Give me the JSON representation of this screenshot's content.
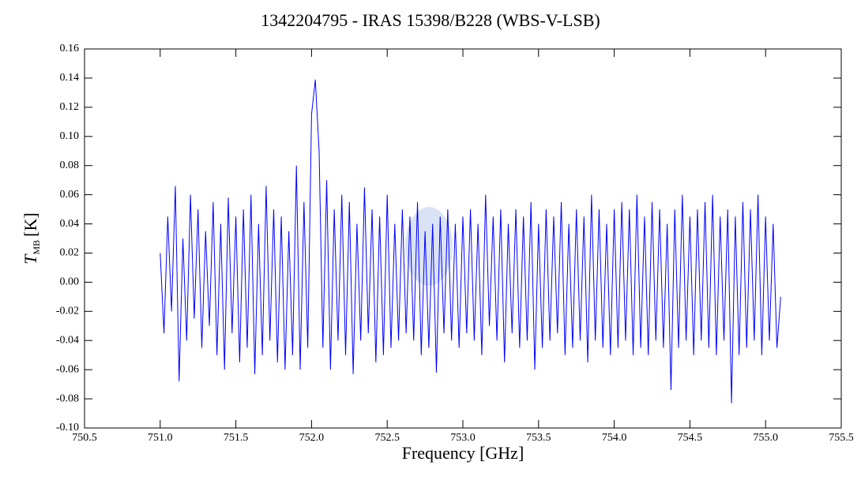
{
  "chart_data": {
    "type": "line",
    "title": "1342204795 - IRAS 15398/B228 (WBS-V-LSB)",
    "xlabel": "Frequency [GHz]",
    "ylabel": {
      "symbol": "T",
      "subscript": "MB",
      "unit": "[K]"
    },
    "xlim": [
      750.5,
      755.5
    ],
    "ylim": [
      -0.1,
      0.16
    ],
    "xticks": [
      750.5,
      {
        "value": 751,
        "label": "751.0"
      },
      751.5,
      {
        "value": 752,
        "label": "752.0"
      },
      752.5,
      {
        "value": 753,
        "label": "753.0"
      },
      753.5,
      {
        "value": 754,
        "label": "754.0"
      },
      754.5,
      {
        "value": 755,
        "label": "755.0"
      },
      755.5
    ],
    "yticks": [
      {
        "value": -0.1,
        "label": "-0.10"
      },
      -0.08,
      -0.06,
      -0.04,
      -0.02,
      {
        "value": 0,
        "label": "0.00"
      },
      0.02,
      0.04,
      0.06,
      0.08,
      {
        "value": 0.1,
        "label": "0.10"
      },
      0.12,
      0.14,
      0.16
    ],
    "x": [
      751,
      751.025,
      751.05,
      751.075,
      751.1,
      751.125,
      751.15,
      751.175,
      751.2,
      751.225,
      751.25,
      751.275,
      751.3,
      751.325,
      751.35,
      751.375,
      751.4,
      751.425,
      751.45,
      751.475,
      751.5,
      751.525,
      751.55,
      751.575,
      751.6,
      751.625,
      751.65,
      751.675,
      751.7,
      751.725,
      751.75,
      751.775,
      751.8,
      751.825,
      751.85,
      751.875,
      751.9,
      751.925,
      751.95,
      751.975,
      752,
      752.025,
      752.05,
      752.075,
      752.1,
      752.125,
      752.15,
      752.175,
      752.2,
      752.225,
      752.25,
      752.275,
      752.3,
      752.325,
      752.35,
      752.375,
      752.4,
      752.425,
      752.45,
      752.475,
      752.5,
      752.525,
      752.55,
      752.575,
      752.6,
      752.625,
      752.65,
      752.675,
      752.7,
      752.725,
      752.75,
      752.775,
      752.8,
      752.825,
      752.85,
      752.875,
      752.9,
      752.925,
      752.95,
      752.975,
      753,
      753.025,
      753.05,
      753.075,
      753.1,
      753.125,
      753.15,
      753.175,
      753.2,
      753.225,
      753.25,
      753.275,
      753.3,
      753.325,
      753.35,
      753.375,
      753.4,
      753.425,
      753.45,
      753.475,
      753.5,
      753.525,
      753.55,
      753.575,
      753.6,
      753.625,
      753.65,
      753.675,
      753.7,
      753.725,
      753.75,
      753.775,
      753.8,
      753.825,
      753.85,
      753.875,
      753.9,
      753.925,
      753.95,
      753.975,
      754,
      754.025,
      754.05,
      754.075,
      754.1,
      754.125,
      754.15,
      754.175,
      754.2,
      754.225,
      754.25,
      754.275,
      754.3,
      754.325,
      754.35,
      754.375,
      754.4,
      754.425,
      754.45,
      754.475,
      754.5,
      754.525,
      754.55,
      754.575,
      754.6,
      754.625,
      754.65,
      754.675,
      754.7,
      754.725,
      754.75,
      754.775,
      754.8,
      754.825,
      754.85,
      754.875,
      754.9,
      754.925,
      754.95,
      754.975,
      755,
      755.025,
      755.05,
      755.075,
      755.1
    ],
    "series": [
      {
        "color": "#0000ff",
        "values": [
          0.02,
          -0.035,
          0.045,
          -0.02,
          0.066,
          -0.068,
          0.03,
          -0.04,
          0.06,
          -0.025,
          0.05,
          -0.045,
          0.035,
          -0.03,
          0.055,
          -0.05,
          0.04,
          -0.06,
          0.058,
          -0.035,
          0.045,
          -0.055,
          0.05,
          -0.045,
          0.06,
          -0.063,
          0.04,
          -0.05,
          0.066,
          -0.04,
          0.05,
          -0.055,
          0.045,
          -0.06,
          0.035,
          -0.05,
          0.08,
          -0.06,
          0.055,
          -0.045,
          0.115,
          0.139,
          0.09,
          -0.045,
          0.07,
          -0.06,
          0.05,
          -0.04,
          0.06,
          -0.05,
          0.055,
          -0.063,
          0.04,
          -0.04,
          0.065,
          -0.035,
          0.05,
          -0.055,
          0.045,
          -0.05,
          0.06,
          -0.045,
          0.04,
          -0.04,
          0.05,
          -0.035,
          0.045,
          -0.04,
          0.055,
          -0.05,
          0.035,
          -0.045,
          0.04,
          -0.062,
          0.045,
          -0.035,
          0.05,
          -0.04,
          0.04,
          -0.045,
          0.045,
          -0.035,
          0.05,
          -0.04,
          0.04,
          -0.05,
          0.06,
          -0.03,
          0.045,
          -0.04,
          0.05,
          -0.055,
          0.04,
          -0.035,
          0.05,
          -0.045,
          0.045,
          -0.04,
          0.055,
          -0.06,
          0.04,
          -0.045,
          0.05,
          -0.04,
          0.045,
          -0.035,
          0.055,
          -0.05,
          0.04,
          -0.045,
          0.05,
          -0.04,
          0.045,
          -0.055,
          0.06,
          -0.04,
          0.05,
          -0.045,
          0.04,
          -0.05,
          0.05,
          -0.045,
          0.055,
          -0.04,
          0.05,
          -0.05,
          0.06,
          -0.045,
          0.045,
          -0.05,
          0.055,
          -0.04,
          0.05,
          -0.045,
          0.04,
          -0.074,
          0.05,
          -0.045,
          0.06,
          -0.04,
          0.045,
          -0.05,
          0.05,
          -0.04,
          0.055,
          -0.045,
          0.06,
          -0.05,
          0.045,
          -0.04,
          0.05,
          -0.083,
          0.045,
          -0.05,
          0.055,
          -0.045,
          0.05,
          -0.04,
          0.06,
          -0.05,
          0.045,
          -0.04,
          0.04,
          -0.045,
          -0.01
        ]
      }
    ]
  }
}
